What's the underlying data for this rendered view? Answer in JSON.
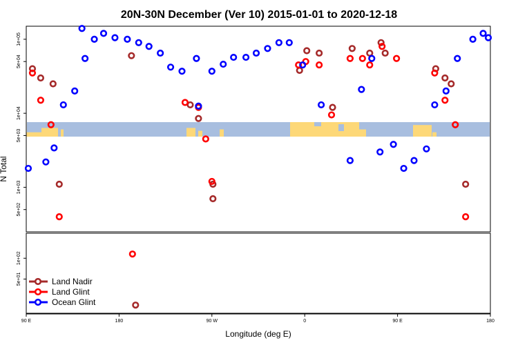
{
  "chart_data": {
    "type": "scatter",
    "title": "20N-30N December (Ver 10)   2015-01-01 to 2020-12-18",
    "xlabel": "Longitude (deg E)",
    "ylabel": "N Total",
    "x_ticks": [
      {
        "value": 90,
        "label": "90 E"
      },
      {
        "value": 180,
        "label": "180"
      },
      {
        "value": 270,
        "label": "90 W"
      },
      {
        "value": 360,
        "label": "0"
      },
      {
        "value": 450,
        "label": "90 E"
      },
      {
        "value": 540,
        "label": "180"
      }
    ],
    "xlim": [
      90,
      540
    ],
    "upper_panel": {
      "yscale": "log",
      "ylim": [
        250,
        150000
      ],
      "y_ticks": [
        {
          "value": 500,
          "label": "5e+02"
        },
        {
          "value": 1000,
          "label": "1e+03"
        },
        {
          "value": 5000,
          "label": "5e+03"
        },
        {
          "value": 10000,
          "label": "1e+04"
        },
        {
          "value": 50000,
          "label": "5e+04"
        },
        {
          "value": 100000,
          "label": "1e+05"
        }
      ],
      "map_band": true
    },
    "lower_panel": {
      "yscale": "log",
      "ylim": [
        16,
        230
      ],
      "y_ticks": [
        {
          "value": 50,
          "label": "5e+01"
        },
        {
          "value": 100,
          "label": "1e+02"
        }
      ]
    },
    "legend_position": "bottom-left",
    "series": [
      {
        "name": "Land Nadir",
        "color": "#a52a2a",
        "points": [
          [
            96,
            40000
          ],
          [
            104,
            30000
          ],
          [
            116,
            25000
          ],
          [
            122,
            1100
          ],
          [
            249,
            13000
          ],
          [
            257,
            8500
          ],
          [
            271,
            1100
          ],
          [
            271,
            700
          ],
          [
            355,
            38000
          ],
          [
            362,
            70000
          ],
          [
            374,
            65000
          ],
          [
            387,
            12000
          ],
          [
            406,
            75000
          ],
          [
            423,
            65000
          ],
          [
            438,
            65000
          ],
          [
            434,
            90000
          ],
          [
            487,
            40000
          ],
          [
            496,
            30000
          ],
          [
            502,
            25000
          ],
          [
            516,
            1100
          ],
          [
            196,
            21
          ],
          [
            192,
            60000
          ]
        ]
      },
      {
        "name": "Land Glint",
        "color": "#ff0000",
        "points": [
          [
            96,
            35000
          ],
          [
            104,
            15000
          ],
          [
            114,
            7000
          ],
          [
            122,
            400
          ],
          [
            244,
            14000
          ],
          [
            257,
            12000
          ],
          [
            264,
            4500
          ],
          [
            270,
            1200
          ],
          [
            354,
            45000
          ],
          [
            361,
            50000
          ],
          [
            374,
            45000
          ],
          [
            386,
            9500
          ],
          [
            404,
            55000
          ],
          [
            416,
            55000
          ],
          [
            423,
            45000
          ],
          [
            435,
            80000
          ],
          [
            449,
            55000
          ],
          [
            486,
            35000
          ],
          [
            496,
            15000
          ],
          [
            506,
            7000
          ],
          [
            516,
            400
          ],
          [
            193,
            115
          ]
        ]
      },
      {
        "name": "Ocean Glint",
        "color": "#0000ff",
        "points": [
          [
            92,
            1800
          ],
          [
            109,
            2200
          ],
          [
            117,
            3400
          ],
          [
            126,
            13000
          ],
          [
            137,
            20000
          ],
          [
            147,
            55000
          ],
          [
            156,
            100000
          ],
          [
            165,
            120000
          ],
          [
            176,
            105000
          ],
          [
            188,
            100000
          ],
          [
            199,
            90000
          ],
          [
            209,
            80000
          ],
          [
            220,
            65000
          ],
          [
            230,
            42000
          ],
          [
            241,
            37000
          ],
          [
            255,
            55000
          ],
          [
            257,
            12500
          ],
          [
            270,
            37000
          ],
          [
            281,
            46000
          ],
          [
            291,
            57000
          ],
          [
            303,
            57000
          ],
          [
            313,
            65000
          ],
          [
            324,
            75000
          ],
          [
            335,
            90000
          ],
          [
            345,
            90000
          ],
          [
            358,
            45000
          ],
          [
            376,
            13000
          ],
          [
            404,
            2300
          ],
          [
            415,
            21000
          ],
          [
            425,
            55000
          ],
          [
            433,
            3000
          ],
          [
            446,
            3800
          ],
          [
            456,
            1800
          ],
          [
            466,
            2300
          ],
          [
            478,
            3300
          ],
          [
            486,
            13000
          ],
          [
            497,
            20000
          ],
          [
            508,
            55000
          ],
          [
            523,
            100000
          ],
          [
            533,
            120000
          ],
          [
            538,
            105000
          ],
          [
            144,
            140000
          ]
        ]
      }
    ]
  }
}
